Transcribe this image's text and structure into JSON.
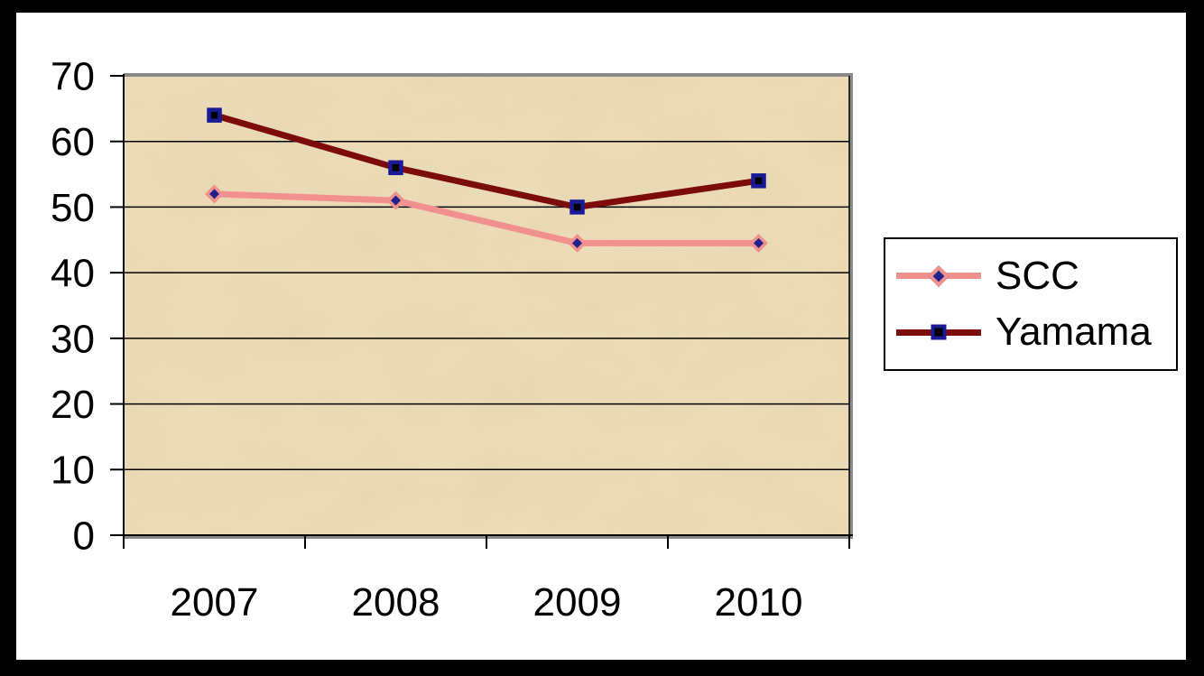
{
  "frame": {
    "border_color": "#000000",
    "canvas_background": "#ffffff"
  },
  "chart_data": {
    "type": "line",
    "title": "",
    "xlabel": "",
    "ylabel": "",
    "categories": [
      "2007",
      "2008",
      "2009",
      "2010"
    ],
    "series": [
      {
        "name": "SCC",
        "values": [
          52,
          51,
          44.5,
          44.5
        ],
        "line_color": "#f2908d",
        "marker": "diamond",
        "marker_fill": "#22228c",
        "marker_stroke": "#f2908d"
      },
      {
        "name": "Yamama",
        "values": [
          64,
          56,
          50,
          54
        ],
        "line_color": "#7d0b0b",
        "marker": "square",
        "marker_fill": "#000000",
        "marker_stroke": "#1a1a99"
      }
    ],
    "ylim": [
      0,
      70
    ],
    "yticks": [
      0,
      10,
      20,
      30,
      40,
      50,
      60,
      70
    ],
    "grid": true,
    "gridline_color": "#000000",
    "axis_color": "#000000",
    "tick_label_color": "#000000",
    "plot_background": "#efdfbb",
    "plot_shadow_color": "#8a8a8a",
    "legend_position": "right",
    "legend_background": "#ffffff",
    "legend_border_color": "#000000"
  }
}
